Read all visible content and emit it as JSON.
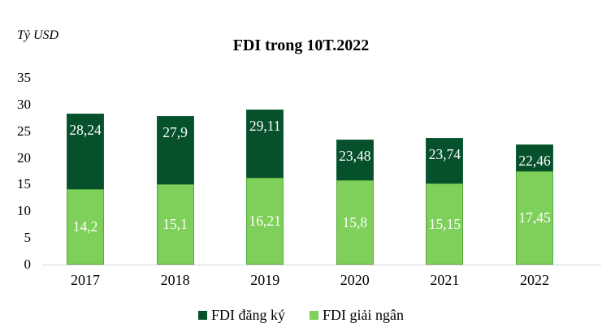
{
  "chart_data": {
    "type": "bar",
    "variant": "overlapped-columns",
    "title": "FDI trong 10T.2022",
    "unit_label": "Tỷ USD",
    "categories": [
      "2017",
      "2018",
      "2019",
      "2020",
      "2021",
      "2022"
    ],
    "series": [
      {
        "name": "FDI đăng ký",
        "color": "#07502c",
        "border_color": "#11603a",
        "values": [
          28.24,
          27.9,
          29.11,
          23.48,
          23.74,
          22.46
        ],
        "value_labels": [
          "28,24",
          "27,9",
          "29,11",
          "23,48",
          "23,74",
          "22,46"
        ]
      },
      {
        "name": "FDI giải ngân",
        "color": "#7ed05a",
        "border_color": "#58a83f",
        "values": [
          14.2,
          15.1,
          16.21,
          15.8,
          15.15,
          17.45
        ],
        "value_labels": [
          "14,2",
          "15,1",
          "16,21",
          "15,8",
          "15,15",
          "17,45"
        ]
      }
    ],
    "ylim": [
      0,
      35
    ],
    "yticks": [
      35,
      30,
      25,
      20,
      15,
      10,
      5,
      0
    ],
    "grid": false,
    "legend_position": "bottom",
    "value_label_color": "#ffffff",
    "axis_line_color": "#d6d6d6",
    "text_color": "#000000"
  }
}
